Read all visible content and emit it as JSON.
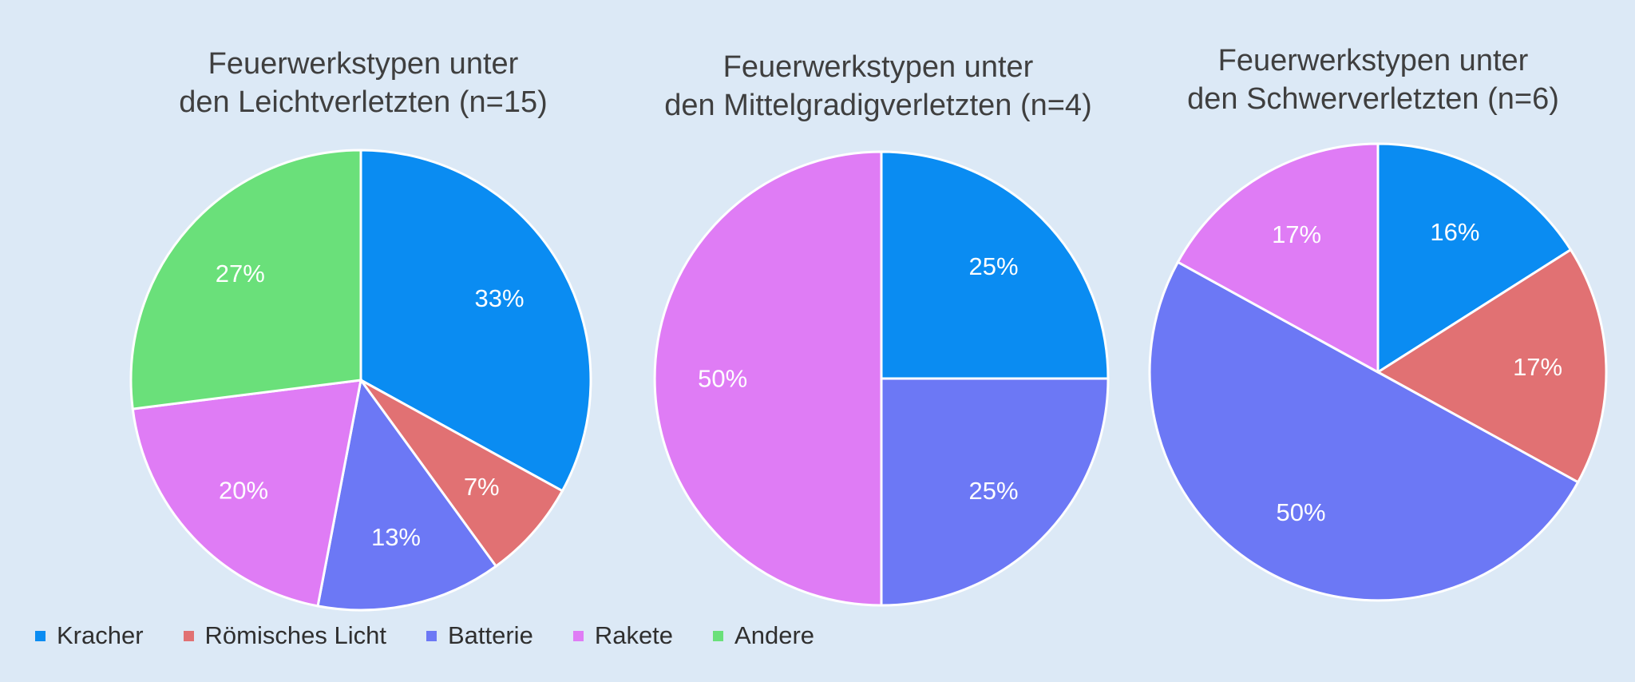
{
  "legend": [
    {
      "label": "Kracher",
      "color": "#0a8cf2"
    },
    {
      "label": "Römisches Licht",
      "color": "#e17173"
    },
    {
      "label": "Batterie",
      "color": "#6c78f5"
    },
    {
      "label": "Rakete",
      "color": "#df7cf5"
    },
    {
      "label": "Andere",
      "color": "#6ae07a"
    }
  ],
  "chart_data": [
    {
      "type": "pie",
      "title_lines": [
        "Feuerwerkstypen unter",
        "den Leichtverletzten (n=15)"
      ],
      "slices": [
        {
          "category": "Kracher",
          "value": 33,
          "label": "33%"
        },
        {
          "category": "Römisches Licht",
          "value": 7,
          "label": "7%"
        },
        {
          "category": "Batterie",
          "value": 13,
          "label": "13%"
        },
        {
          "category": "Rakete",
          "value": 20,
          "label": "20%"
        },
        {
          "category": "Andere",
          "value": 27,
          "label": "27%"
        }
      ]
    },
    {
      "type": "pie",
      "title_lines": [
        "Feuerwerkstypen unter",
        "den Mittelgradigverletzten (n=4)"
      ],
      "slices": [
        {
          "category": "Kracher",
          "value": 25,
          "label": "25%"
        },
        {
          "category": "Batterie",
          "value": 25,
          "label": "25%"
        },
        {
          "category": "Rakete",
          "value": 50,
          "label": "50%"
        }
      ]
    },
    {
      "type": "pie",
      "title_lines": [
        "Feuerwerkstypen unter",
        "den Schwerverletzten (n=6)"
      ],
      "slices": [
        {
          "category": "Kracher",
          "value": 16,
          "label": "16%"
        },
        {
          "category": "Römisches Licht",
          "value": 17,
          "label": "17%"
        },
        {
          "category": "Batterie",
          "value": 50,
          "label": "50%"
        },
        {
          "category": "Rakete",
          "value": 17,
          "label": "17%"
        }
      ]
    }
  ]
}
